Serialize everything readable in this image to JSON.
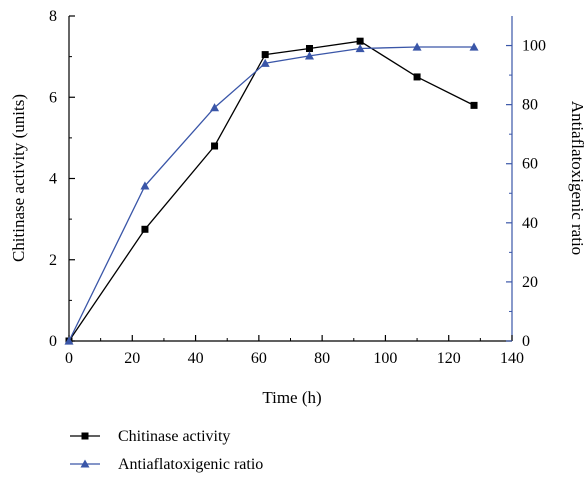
{
  "chart_data": {
    "type": "line",
    "xlabel": "Time (h)",
    "ylabel": "Chitinase activity (units)",
    "y2label": "Antiaflatoxigenic ratio",
    "xlim": [
      0,
      140
    ],
    "ylim": [
      0,
      8
    ],
    "y2lim": [
      0,
      110
    ],
    "xticks": [
      0,
      20,
      40,
      60,
      80,
      100,
      120,
      140
    ],
    "yticks": [
      0,
      2,
      4,
      6,
      8
    ],
    "y2ticks": [
      0,
      20,
      40,
      60,
      80,
      100
    ],
    "grid": false,
    "legend_position": "bottom-left",
    "series": [
      {
        "name": "Chitinase activity",
        "axis": "left",
        "color": "#000000",
        "marker": "square",
        "x": [
          0,
          24,
          46,
          62,
          76,
          92,
          110,
          128
        ],
        "y": [
          0,
          2.75,
          4.8,
          7.05,
          7.2,
          7.38,
          6.5,
          5.8
        ]
      },
      {
        "name": "Antiaflatoxigenic ratio",
        "axis": "right",
        "color": "#3a56a8",
        "marker": "triangle",
        "x": [
          0,
          24,
          46,
          62,
          76,
          92,
          110,
          128
        ],
        "y": [
          0,
          52.5,
          79,
          94,
          96.5,
          99,
          99.5,
          99.5
        ]
      }
    ]
  },
  "colors": {
    "axis_left": "#000000",
    "axis_right": "#3a56a8"
  }
}
